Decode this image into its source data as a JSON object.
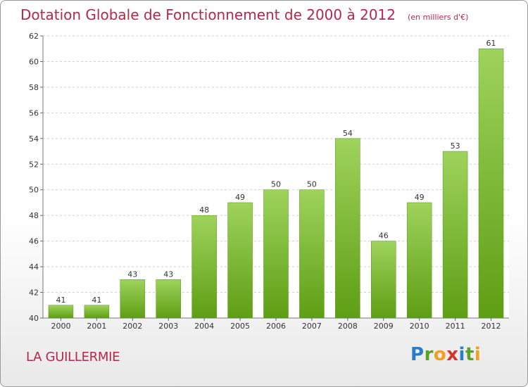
{
  "header": {
    "title": "Dotation Globale de Fonctionnement de 2000 à 2012",
    "unit_note": "(en milliers d'€)"
  },
  "footer": {
    "commune": "LA GUILLERMIE",
    "brand": "Proxiti"
  },
  "colors": {
    "bar_light": "#9ed35c",
    "bar_dark": "#5e9e14",
    "title": "#b5284a",
    "grid": "#d0d0d0"
  },
  "chart_data": {
    "type": "bar",
    "title": "Dotation Globale de Fonctionnement de 2000 à 2012",
    "subtitle": "(en milliers d'€)",
    "xlabel": "",
    "ylabel": "",
    "categories": [
      "2000",
      "2001",
      "2002",
      "2003",
      "2004",
      "2005",
      "2006",
      "2007",
      "2008",
      "2009",
      "2010",
      "2011",
      "2012"
    ],
    "values": [
      41,
      41,
      43,
      43,
      48,
      49,
      50,
      50,
      54,
      46,
      49,
      53,
      61
    ],
    "ylim": [
      40,
      62
    ],
    "yticks": [
      40,
      42,
      44,
      46,
      48,
      50,
      52,
      54,
      56,
      58,
      60,
      62
    ],
    "grid": true,
    "data_labels": true
  }
}
